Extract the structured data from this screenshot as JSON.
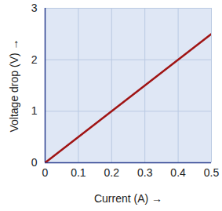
{
  "chart_data": {
    "type": "line",
    "x_label": "Current (A)",
    "y_label": "Voltage drop (V)",
    "x": [
      0,
      0.5
    ],
    "values": [
      0,
      2.5
    ],
    "color": "#a01414",
    "xlim": [
      0,
      0.5
    ],
    "xticks": [
      0,
      0.1,
      0.2,
      0.3,
      0.4,
      0.5
    ],
    "ylim": [
      0,
      3
    ],
    "yticks": [
      0,
      1,
      2,
      3
    ],
    "grid": true
  }
}
